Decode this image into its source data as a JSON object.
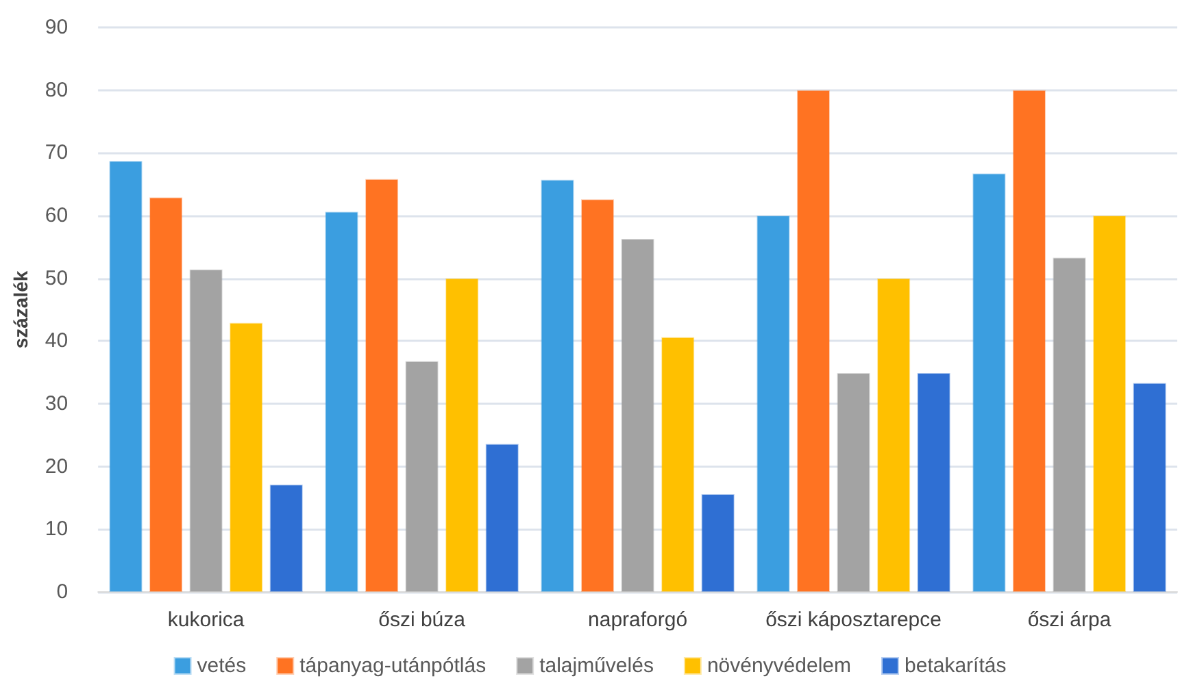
{
  "chart_data": {
    "type": "bar",
    "ylabel": "százalék",
    "categories": [
      "kukorica",
      "őszi búza",
      "napraforgó",
      "őszi káposztarepce",
      "őszi árpa"
    ],
    "series": [
      {
        "name": "vetés",
        "color": "#3b9ee0",
        "values": [
          68.7,
          60.6,
          65.7,
          60.0,
          66.7
        ]
      },
      {
        "name": "tápanyag-utánpótlás",
        "color": "#ff7322",
        "values": [
          62.9,
          65.8,
          62.6,
          80.0,
          80.0
        ]
      },
      {
        "name": "talajművelés",
        "color": "#a3a3a3",
        "values": [
          51.4,
          36.8,
          56.3,
          34.9,
          53.3
        ]
      },
      {
        "name": "növényvédelem",
        "color": "#ffc000",
        "values": [
          42.9,
          50.0,
          40.6,
          50.0,
          60.0
        ]
      },
      {
        "name": "betakarítás",
        "color": "#2f6fd3",
        "values": [
          17.1,
          23.6,
          15.6,
          34.9,
          33.3
        ]
      }
    ],
    "ylim": [
      0,
      90
    ],
    "yticks": [
      0,
      10,
      20,
      30,
      40,
      50,
      60,
      70,
      80,
      90
    ],
    "grid": "y",
    "legend": "bottom"
  }
}
